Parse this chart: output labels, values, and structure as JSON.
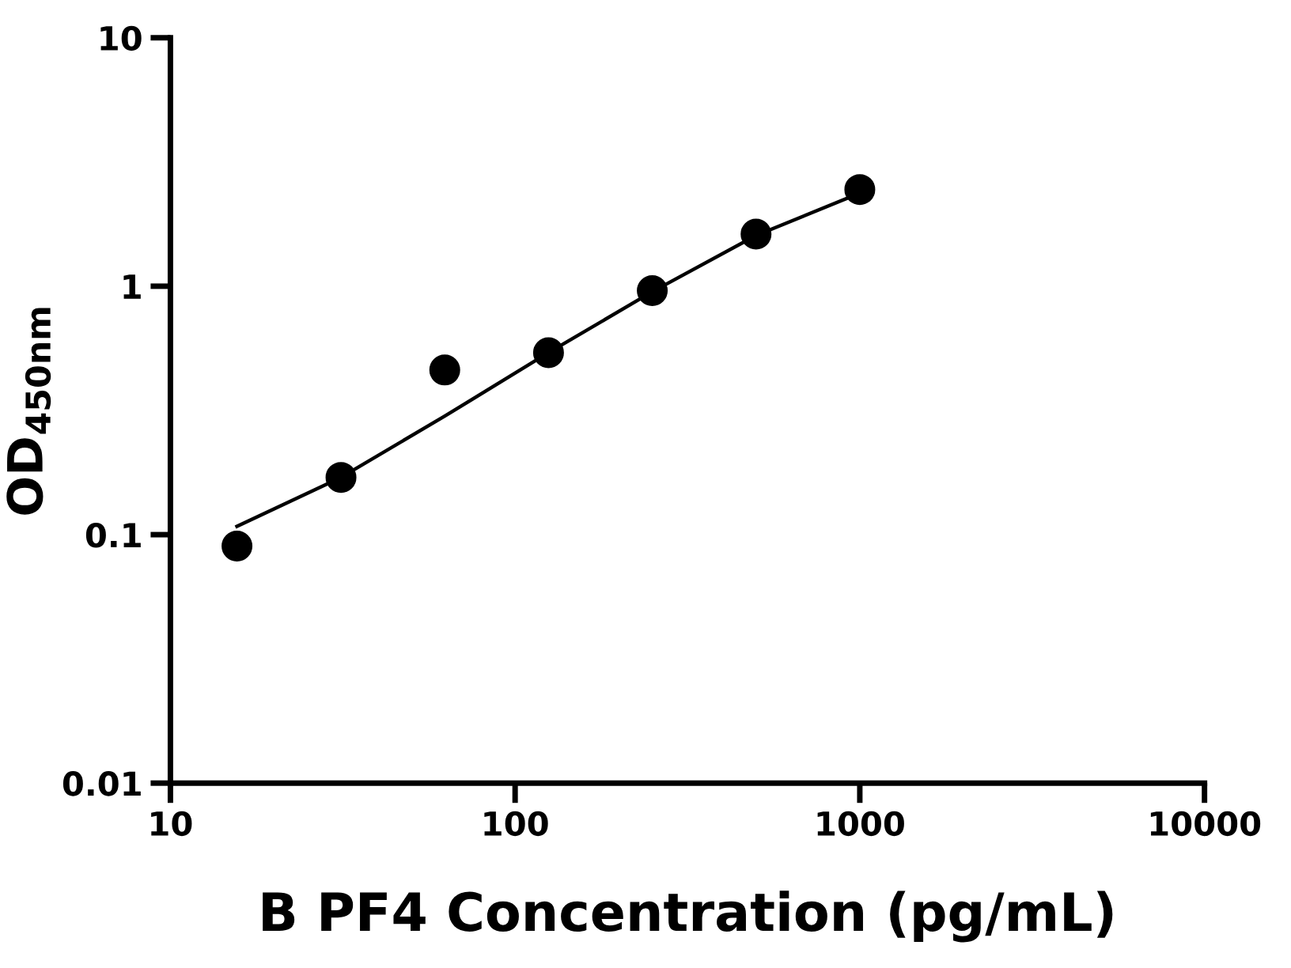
{
  "chart_data": {
    "type": "scatter",
    "xlabel": "B PF4 Concentration (pg/mL)",
    "ylabel": "OD$_{450nm}$",
    "log": "xy",
    "grid": false,
    "legend": false,
    "marker": "circle",
    "xlim": [
      10,
      10000
    ],
    "xticks": [
      10,
      100,
      1000,
      10000
    ],
    "ylim": [
      0.01,
      10
    ],
    "yticks": [
      0.01,
      0.1,
      1,
      10
    ],
    "series": [
      {
        "color": "#000000",
        "x": [
          15.6,
          31.25,
          62.5,
          125,
          250,
          500,
          1000
        ],
        "values": [
          0.09,
          0.17,
          0.46,
          0.54,
          0.96,
          1.62,
          2.45
        ]
      },
      {
        "type": "line",
        "color": "#000000",
        "marker": "none",
        "line_style": "solid",
        "x": [
          15.6,
          31.25,
          62.5,
          125,
          250,
          500,
          1000
        ],
        "values": [
          0.108,
          0.17,
          0.3,
          0.54,
          0.95,
          1.6,
          2.37
        ]
      }
    ]
  }
}
